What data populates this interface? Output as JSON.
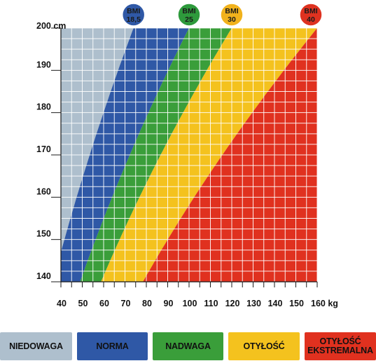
{
  "chart_data": {
    "type": "area",
    "title": "",
    "xlabel": "",
    "ylabel": "",
    "x_unit": "kg",
    "y_unit": "cm",
    "xlim": [
      40,
      160
    ],
    "ylim": [
      140,
      200
    ],
    "x_minor_step": 5,
    "y_minor_step": 2.5,
    "x_ticks": [
      40,
      50,
      60,
      70,
      80,
      90,
      100,
      110,
      120,
      130,
      140,
      150,
      160
    ],
    "y_ticks": [
      140,
      150,
      160,
      170,
      180,
      190,
      200
    ],
    "grid": true,
    "x_tick_labels": [
      "40",
      "50",
      "60",
      "70",
      "80",
      "90",
      "100",
      "110",
      "120",
      "130",
      "140",
      "150",
      "160 kg"
    ],
    "y_tick_labels": [
      "140",
      "150",
      "160",
      "170",
      "180",
      "190",
      "200  cm"
    ],
    "bmi_thresholds": [
      18.5,
      25,
      30,
      40
    ],
    "bmi_badges": [
      {
        "line1": "BMI",
        "line2": "18,5",
        "bmi": 18.5,
        "color": "#2f58a6"
      },
      {
        "line1": "BMI",
        "line2": "25",
        "bmi": 25,
        "color": "#2e9a3c"
      },
      {
        "line1": "BMI",
        "line2": "30",
        "bmi": 30,
        "color": "#f1b21c"
      },
      {
        "line1": "BMI",
        "line2": "40",
        "bmi": 40,
        "color": "#de3220"
      }
    ],
    "series": [
      {
        "name": "NIEDOWAGA",
        "bmi_range": [
          0,
          18.5
        ],
        "color": "#aebfcd"
      },
      {
        "name": "NORMA",
        "bmi_range": [
          18.5,
          25
        ],
        "color": "#2f58a6"
      },
      {
        "name": "NADWAGA",
        "bmi_range": [
          25,
          30
        ],
        "color": "#3a9e3a"
      },
      {
        "name": "OTYŁOŚĆ",
        "bmi_range": [
          30,
          40
        ],
        "color": "#f4c21e"
      },
      {
        "name": "OTYŁOŚĆ\nEKSTREMALNA",
        "bmi_range": [
          40,
          100
        ],
        "color": "#e0311f"
      }
    ]
  }
}
